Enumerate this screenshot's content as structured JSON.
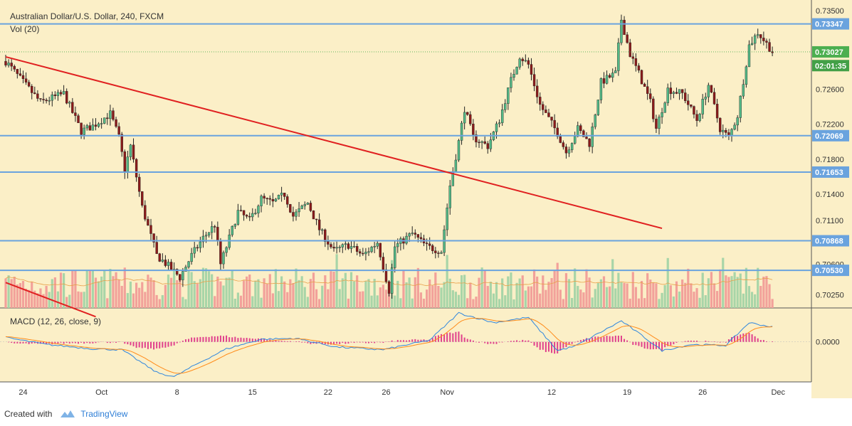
{
  "header": {
    "title": "Australian Dollar/U.S. Dollar, 240, FXCM",
    "vol_label": "Vol (20)",
    "macd_label": "MACD (12, 26, close, 9)"
  },
  "footer": {
    "created_with": "Created with",
    "brand": "TradingView"
  },
  "colors": {
    "background": "#fbefc7",
    "up": "#53b987",
    "down": "#8b1a1a",
    "vol_up": "#a8d5a8",
    "vol_down": "#f2a19a",
    "hline": "#6aa3de",
    "trendline": "#e02020",
    "macd": "#2e86de",
    "signal": "#ff8c1a",
    "hist": "#e0408c",
    "axis_text": "#333333"
  },
  "chart_data": {
    "type": "candlestick",
    "y_ticks": [
      "0.73500",
      "0.72600",
      "0.72200",
      "0.71800",
      "0.71400",
      "0.71100",
      "0.70600",
      "0.70250"
    ],
    "price_labels": [
      {
        "text": "0.73347",
        "value": 0.73347,
        "kind": "hline"
      },
      {
        "text": "0.73027",
        "value": 0.73027,
        "kind": "last"
      },
      {
        "text": "02:01:35",
        "value": 0.7287,
        "kind": "timer"
      },
      {
        "text": "0.72069",
        "value": 0.72069,
        "kind": "hline"
      },
      {
        "text": "0.71653",
        "value": 0.71653,
        "kind": "hline"
      },
      {
        "text": "0.70868",
        "value": 0.70868,
        "kind": "hline"
      },
      {
        "text": "0.70530",
        "value": 0.7053,
        "kind": "hline"
      }
    ],
    "hlines": [
      0.73347,
      0.72069,
      0.71653,
      0.70868,
      0.7053
    ],
    "trendlines": [
      {
        "name": "main",
        "from": [
          0,
          0.7297
        ],
        "to": [
          226,
          0.7101
        ]
      },
      {
        "name": "lower",
        "from": [
          0,
          0.7039
        ],
        "to": [
          31,
          0.7
        ]
      }
    ],
    "x_ticks": [
      {
        "label": "24",
        "bar": 6
      },
      {
        "label": "Oct",
        "bar": 33
      },
      {
        "label": "8",
        "bar": 59
      },
      {
        "label": "15",
        "bar": 85
      },
      {
        "label": "22",
        "bar": 111
      },
      {
        "label": "26",
        "bar": 131
      },
      {
        "label": "Nov",
        "bar": 152
      },
      {
        "label": "12",
        "bar": 188
      },
      {
        "label": "19",
        "bar": 214
      },
      {
        "label": "26",
        "bar": 240
      },
      {
        "label": "Dec",
        "bar": 266
      }
    ],
    "price_axis": {
      "min": 0.701,
      "max": 0.7362
    },
    "macd_axis": {
      "tick": "0.0000",
      "min": -0.0045,
      "max": 0.0038
    },
    "bars": 265,
    "anchors": [
      [
        0,
        0.7292
      ],
      [
        5,
        0.7272
      ],
      [
        12,
        0.7245
      ],
      [
        20,
        0.7255
      ],
      [
        26,
        0.7212
      ],
      [
        30,
        0.7218
      ],
      [
        36,
        0.7232
      ],
      [
        39,
        0.7205
      ],
      [
        41,
        0.7168
      ],
      [
        43,
        0.7195
      ],
      [
        47,
        0.7125
      ],
      [
        52,
        0.707
      ],
      [
        56,
        0.7058
      ],
      [
        60,
        0.7045
      ],
      [
        64,
        0.707
      ],
      [
        68,
        0.709
      ],
      [
        72,
        0.7105
      ],
      [
        74,
        0.706
      ],
      [
        76,
        0.708
      ],
      [
        80,
        0.712
      ],
      [
        84,
        0.711
      ],
      [
        88,
        0.7135
      ],
      [
        92,
        0.713
      ],
      [
        96,
        0.714
      ],
      [
        99,
        0.7115
      ],
      [
        104,
        0.713
      ],
      [
        108,
        0.71
      ],
      [
        113,
        0.7075
      ],
      [
        118,
        0.7082
      ],
      [
        123,
        0.707
      ],
      [
        128,
        0.7085
      ],
      [
        132,
        0.703
      ],
      [
        134,
        0.708
      ],
      [
        140,
        0.7095
      ],
      [
        145,
        0.708
      ],
      [
        150,
        0.7075
      ],
      [
        153,
        0.715
      ],
      [
        156,
        0.72
      ],
      [
        158,
        0.7238
      ],
      [
        161,
        0.7205
      ],
      [
        166,
        0.7195
      ],
      [
        170,
        0.7225
      ],
      [
        174,
        0.727
      ],
      [
        177,
        0.7298
      ],
      [
        180,
        0.7288
      ],
      [
        184,
        0.7242
      ],
      [
        190,
        0.721
      ],
      [
        193,
        0.7188
      ],
      [
        197,
        0.7215
      ],
      [
        201,
        0.7198
      ],
      [
        205,
        0.7268
      ],
      [
        210,
        0.7278
      ],
      [
        212,
        0.734
      ],
      [
        215,
        0.73
      ],
      [
        218,
        0.7278
      ],
      [
        222,
        0.7245
      ],
      [
        224,
        0.7215
      ],
      [
        228,
        0.726
      ],
      [
        233,
        0.7255
      ],
      [
        238,
        0.7225
      ],
      [
        242,
        0.7265
      ],
      [
        246,
        0.7215
      ],
      [
        249,
        0.7205
      ],
      [
        252,
        0.723
      ],
      [
        254,
        0.727
      ],
      [
        256,
        0.731
      ],
      [
        259,
        0.7325
      ],
      [
        262,
        0.7312
      ],
      [
        264,
        0.7303
      ]
    ],
    "macd_anchors": [
      [
        0,
        0.0005
      ],
      [
        14,
        -0.0003
      ],
      [
        30,
        -0.0008
      ],
      [
        40,
        -0.0009
      ],
      [
        52,
        -0.0035
      ],
      [
        58,
        -0.004
      ],
      [
        66,
        -0.0025
      ],
      [
        76,
        -0.0008
      ],
      [
        88,
        0.0003
      ],
      [
        100,
        0.0004
      ],
      [
        114,
        -0.0006
      ],
      [
        130,
        -0.0009
      ],
      [
        146,
        0.0002
      ],
      [
        156,
        0.0033
      ],
      [
        168,
        0.0022
      ],
      [
        180,
        0.0028
      ],
      [
        190,
        -0.001
      ],
      [
        196,
        -0.0005
      ],
      [
        212,
        0.0024
      ],
      [
        220,
        0.0005
      ],
      [
        226,
        -0.001
      ],
      [
        236,
        -0.0003
      ],
      [
        248,
        -0.0004
      ],
      [
        256,
        0.0022
      ],
      [
        264,
        0.0017
      ]
    ]
  }
}
